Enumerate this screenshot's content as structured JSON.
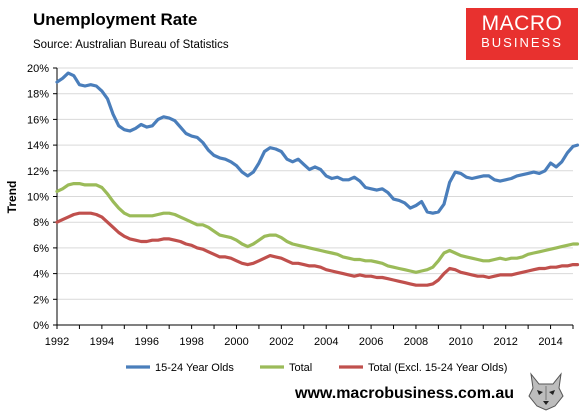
{
  "header": {
    "title": "Unemployment Rate",
    "source": "Source: Australian Bureau of Statistics"
  },
  "brand": {
    "line1": "MACRO",
    "line2": "BUSINESS",
    "color": "#e8312f",
    "url": "www.macrobusiness.com.au",
    "mascot_icon": "wolf-logo-icon"
  },
  "chart_data": {
    "type": "line",
    "title": "Unemployment Rate",
    "xlabel": "",
    "ylabel": "Trend",
    "xlim": [
      1992,
      2015
    ],
    "ylim": [
      0,
      20
    ],
    "x_ticks": [
      "1992",
      "1994",
      "1996",
      "1998",
      "2000",
      "2002",
      "2004",
      "2006",
      "2008",
      "2010",
      "2012",
      "2014"
    ],
    "y_ticks": [
      "0%",
      "2%",
      "4%",
      "6%",
      "8%",
      "10%",
      "12%",
      "14%",
      "16%",
      "18%",
      "20%"
    ],
    "grid": "horizontal",
    "legend": "bottom",
    "series": [
      {
        "name": "15-24 Year Olds",
        "color": "#4a7ebb",
        "points": [
          [
            1992.0,
            18.9
          ],
          [
            1992.25,
            19.2
          ],
          [
            1992.5,
            19.6
          ],
          [
            1992.75,
            19.4
          ],
          [
            1993.0,
            18.7
          ],
          [
            1993.25,
            18.6
          ],
          [
            1993.5,
            18.7
          ],
          [
            1993.75,
            18.6
          ],
          [
            1994.0,
            18.2
          ],
          [
            1994.25,
            17.6
          ],
          [
            1994.5,
            16.4
          ],
          [
            1994.75,
            15.5
          ],
          [
            1995.0,
            15.2
          ],
          [
            1995.25,
            15.1
          ],
          [
            1995.5,
            15.3
          ],
          [
            1995.75,
            15.6
          ],
          [
            1996.0,
            15.4
          ],
          [
            1996.25,
            15.5
          ],
          [
            1996.5,
            16.0
          ],
          [
            1996.75,
            16.2
          ],
          [
            1997.0,
            16.1
          ],
          [
            1997.25,
            15.9
          ],
          [
            1997.5,
            15.4
          ],
          [
            1997.75,
            14.9
          ],
          [
            1998.0,
            14.7
          ],
          [
            1998.25,
            14.6
          ],
          [
            1998.5,
            14.2
          ],
          [
            1998.75,
            13.6
          ],
          [
            1999.0,
            13.2
          ],
          [
            1999.25,
            13.0
          ],
          [
            1999.5,
            12.9
          ],
          [
            1999.75,
            12.7
          ],
          [
            2000.0,
            12.4
          ],
          [
            2000.25,
            11.9
          ],
          [
            2000.5,
            11.6
          ],
          [
            2000.75,
            11.9
          ],
          [
            2001.0,
            12.6
          ],
          [
            2001.25,
            13.5
          ],
          [
            2001.5,
            13.8
          ],
          [
            2001.75,
            13.7
          ],
          [
            2002.0,
            13.5
          ],
          [
            2002.25,
            12.9
          ],
          [
            2002.5,
            12.7
          ],
          [
            2002.75,
            12.9
          ],
          [
            2003.0,
            12.5
          ],
          [
            2003.25,
            12.1
          ],
          [
            2003.5,
            12.3
          ],
          [
            2003.75,
            12.1
          ],
          [
            2004.0,
            11.6
          ],
          [
            2004.25,
            11.4
          ],
          [
            2004.5,
            11.5
          ],
          [
            2004.75,
            11.3
          ],
          [
            2005.0,
            11.3
          ],
          [
            2005.25,
            11.5
          ],
          [
            2005.5,
            11.2
          ],
          [
            2005.75,
            10.7
          ],
          [
            2006.0,
            10.6
          ],
          [
            2006.25,
            10.5
          ],
          [
            2006.5,
            10.6
          ],
          [
            2006.75,
            10.3
          ],
          [
            2007.0,
            9.8
          ],
          [
            2007.25,
            9.7
          ],
          [
            2007.5,
            9.5
          ],
          [
            2007.75,
            9.1
          ],
          [
            2008.0,
            9.3
          ],
          [
            2008.25,
            9.6
          ],
          [
            2008.5,
            8.8
          ],
          [
            2008.75,
            8.7
          ],
          [
            2009.0,
            8.8
          ],
          [
            2009.25,
            9.4
          ],
          [
            2009.5,
            11.1
          ],
          [
            2009.75,
            11.9
          ],
          [
            2010.0,
            11.8
          ],
          [
            2010.25,
            11.5
          ],
          [
            2010.5,
            11.4
          ],
          [
            2010.75,
            11.5
          ],
          [
            2011.0,
            11.6
          ],
          [
            2011.25,
            11.6
          ],
          [
            2011.5,
            11.3
          ],
          [
            2011.75,
            11.2
          ],
          [
            2012.0,
            11.3
          ],
          [
            2012.25,
            11.4
          ],
          [
            2012.5,
            11.6
          ],
          [
            2012.75,
            11.7
          ],
          [
            2013.0,
            11.8
          ],
          [
            2013.25,
            11.9
          ],
          [
            2013.5,
            11.8
          ],
          [
            2013.75,
            12.0
          ],
          [
            2014.0,
            12.6
          ],
          [
            2014.25,
            12.3
          ],
          [
            2014.5,
            12.7
          ],
          [
            2014.75,
            13.4
          ],
          [
            2015.0,
            13.9
          ],
          [
            2015.2,
            14.0
          ]
        ]
      },
      {
        "name": "Total",
        "color": "#9bbb59",
        "points": [
          [
            1992.0,
            10.4
          ],
          [
            1992.25,
            10.6
          ],
          [
            1992.5,
            10.9
          ],
          [
            1992.75,
            11.0
          ],
          [
            1993.0,
            11.0
          ],
          [
            1993.25,
            10.9
          ],
          [
            1993.5,
            10.9
          ],
          [
            1993.75,
            10.9
          ],
          [
            1994.0,
            10.7
          ],
          [
            1994.25,
            10.2
          ],
          [
            1994.5,
            9.6
          ],
          [
            1994.75,
            9.1
          ],
          [
            1995.0,
            8.7
          ],
          [
            1995.25,
            8.5
          ],
          [
            1995.5,
            8.5
          ],
          [
            1995.75,
            8.5
          ],
          [
            1996.0,
            8.5
          ],
          [
            1996.25,
            8.5
          ],
          [
            1996.5,
            8.6
          ],
          [
            1996.75,
            8.7
          ],
          [
            1997.0,
            8.7
          ],
          [
            1997.25,
            8.6
          ],
          [
            1997.5,
            8.4
          ],
          [
            1997.75,
            8.2
          ],
          [
            1998.0,
            8.0
          ],
          [
            1998.25,
            7.8
          ],
          [
            1998.5,
            7.8
          ],
          [
            1998.75,
            7.6
          ],
          [
            1999.0,
            7.3
          ],
          [
            1999.25,
            7.0
          ],
          [
            1999.5,
            6.9
          ],
          [
            1999.75,
            6.8
          ],
          [
            2000.0,
            6.6
          ],
          [
            2000.25,
            6.3
          ],
          [
            2000.5,
            6.1
          ],
          [
            2000.75,
            6.3
          ],
          [
            2001.0,
            6.6
          ],
          [
            2001.25,
            6.9
          ],
          [
            2001.5,
            7.0
          ],
          [
            2001.75,
            7.0
          ],
          [
            2002.0,
            6.8
          ],
          [
            2002.25,
            6.5
          ],
          [
            2002.5,
            6.3
          ],
          [
            2002.75,
            6.2
          ],
          [
            2003.0,
            6.1
          ],
          [
            2003.25,
            6.0
          ],
          [
            2003.5,
            5.9
          ],
          [
            2003.75,
            5.8
          ],
          [
            2004.0,
            5.7
          ],
          [
            2004.25,
            5.6
          ],
          [
            2004.5,
            5.5
          ],
          [
            2004.75,
            5.3
          ],
          [
            2005.0,
            5.2
          ],
          [
            2005.25,
            5.1
          ],
          [
            2005.5,
            5.1
          ],
          [
            2005.75,
            5.0
          ],
          [
            2006.0,
            5.0
          ],
          [
            2006.25,
            4.9
          ],
          [
            2006.5,
            4.8
          ],
          [
            2006.75,
            4.6
          ],
          [
            2007.0,
            4.5
          ],
          [
            2007.25,
            4.4
          ],
          [
            2007.5,
            4.3
          ],
          [
            2007.75,
            4.2
          ],
          [
            2008.0,
            4.1
          ],
          [
            2008.25,
            4.2
          ],
          [
            2008.5,
            4.3
          ],
          [
            2008.75,
            4.5
          ],
          [
            2009.0,
            5.0
          ],
          [
            2009.25,
            5.6
          ],
          [
            2009.5,
            5.8
          ],
          [
            2009.75,
            5.6
          ],
          [
            2010.0,
            5.4
          ],
          [
            2010.25,
            5.3
          ],
          [
            2010.5,
            5.2
          ],
          [
            2010.75,
            5.1
          ],
          [
            2011.0,
            5.0
          ],
          [
            2011.25,
            5.0
          ],
          [
            2011.5,
            5.1
          ],
          [
            2011.75,
            5.2
          ],
          [
            2012.0,
            5.1
          ],
          [
            2012.25,
            5.2
          ],
          [
            2012.5,
            5.2
          ],
          [
            2012.75,
            5.3
          ],
          [
            2013.0,
            5.5
          ],
          [
            2013.25,
            5.6
          ],
          [
            2013.5,
            5.7
          ],
          [
            2013.75,
            5.8
          ],
          [
            2014.0,
            5.9
          ],
          [
            2014.25,
            6.0
          ],
          [
            2014.5,
            6.1
          ],
          [
            2014.75,
            6.2
          ],
          [
            2015.0,
            6.3
          ],
          [
            2015.2,
            6.3
          ]
        ]
      },
      {
        "name": "Total (Excl. 15-24 Year Olds)",
        "color": "#c0504d",
        "points": [
          [
            1992.0,
            8.0
          ],
          [
            1992.25,
            8.2
          ],
          [
            1992.5,
            8.4
          ],
          [
            1992.75,
            8.6
          ],
          [
            1993.0,
            8.7
          ],
          [
            1993.25,
            8.7
          ],
          [
            1993.5,
            8.7
          ],
          [
            1993.75,
            8.6
          ],
          [
            1994.0,
            8.4
          ],
          [
            1994.25,
            8.0
          ],
          [
            1994.5,
            7.6
          ],
          [
            1994.75,
            7.2
          ],
          [
            1995.0,
            6.9
          ],
          [
            1995.25,
            6.7
          ],
          [
            1995.5,
            6.6
          ],
          [
            1995.75,
            6.5
          ],
          [
            1996.0,
            6.5
          ],
          [
            1996.25,
            6.6
          ],
          [
            1996.5,
            6.6
          ],
          [
            1996.75,
            6.7
          ],
          [
            1997.0,
            6.7
          ],
          [
            1997.25,
            6.6
          ],
          [
            1997.5,
            6.5
          ],
          [
            1997.75,
            6.3
          ],
          [
            1998.0,
            6.2
          ],
          [
            1998.25,
            6.0
          ],
          [
            1998.5,
            5.9
          ],
          [
            1998.75,
            5.7
          ],
          [
            1999.0,
            5.5
          ],
          [
            1999.25,
            5.3
          ],
          [
            1999.5,
            5.3
          ],
          [
            1999.75,
            5.2
          ],
          [
            2000.0,
            5.0
          ],
          [
            2000.25,
            4.8
          ],
          [
            2000.5,
            4.7
          ],
          [
            2000.75,
            4.8
          ],
          [
            2001.0,
            5.0
          ],
          [
            2001.25,
            5.2
          ],
          [
            2001.5,
            5.4
          ],
          [
            2001.75,
            5.3
          ],
          [
            2002.0,
            5.2
          ],
          [
            2002.25,
            5.0
          ],
          [
            2002.5,
            4.8
          ],
          [
            2002.75,
            4.8
          ],
          [
            2003.0,
            4.7
          ],
          [
            2003.25,
            4.6
          ],
          [
            2003.5,
            4.6
          ],
          [
            2003.75,
            4.5
          ],
          [
            2004.0,
            4.3
          ],
          [
            2004.25,
            4.2
          ],
          [
            2004.5,
            4.1
          ],
          [
            2004.75,
            4.0
          ],
          [
            2005.0,
            3.9
          ],
          [
            2005.25,
            3.8
          ],
          [
            2005.5,
            3.9
          ],
          [
            2005.75,
            3.8
          ],
          [
            2006.0,
            3.8
          ],
          [
            2006.25,
            3.7
          ],
          [
            2006.5,
            3.7
          ],
          [
            2006.75,
            3.6
          ],
          [
            2007.0,
            3.5
          ],
          [
            2007.25,
            3.4
          ],
          [
            2007.5,
            3.3
          ],
          [
            2007.75,
            3.2
          ],
          [
            2008.0,
            3.1
          ],
          [
            2008.25,
            3.1
          ],
          [
            2008.5,
            3.1
          ],
          [
            2008.75,
            3.2
          ],
          [
            2009.0,
            3.5
          ],
          [
            2009.25,
            4.0
          ],
          [
            2009.5,
            4.4
          ],
          [
            2009.75,
            4.3
          ],
          [
            2010.0,
            4.1
          ],
          [
            2010.25,
            4.0
          ],
          [
            2010.5,
            3.9
          ],
          [
            2010.75,
            3.8
          ],
          [
            2011.0,
            3.8
          ],
          [
            2011.25,
            3.7
          ],
          [
            2011.5,
            3.8
          ],
          [
            2011.75,
            3.9
          ],
          [
            2012.0,
            3.9
          ],
          [
            2012.25,
            3.9
          ],
          [
            2012.5,
            4.0
          ],
          [
            2012.75,
            4.1
          ],
          [
            2013.0,
            4.2
          ],
          [
            2013.25,
            4.3
          ],
          [
            2013.5,
            4.4
          ],
          [
            2013.75,
            4.4
          ],
          [
            2014.0,
            4.5
          ],
          [
            2014.25,
            4.5
          ],
          [
            2014.5,
            4.6
          ],
          [
            2014.75,
            4.6
          ],
          [
            2015.0,
            4.7
          ],
          [
            2015.2,
            4.7
          ]
        ]
      }
    ]
  }
}
